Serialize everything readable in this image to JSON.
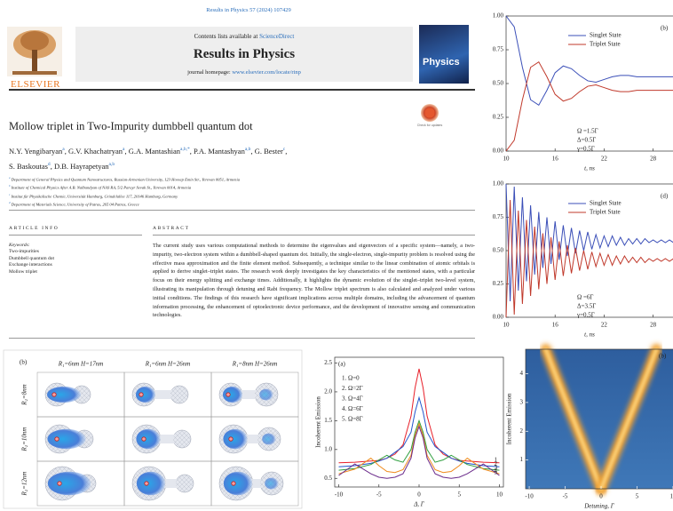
{
  "header": {
    "citation": "Results in Physics 57 (2024) 107429",
    "contents": "Contents lists available at ",
    "sciencedirect": "ScienceDirect",
    "journal": "Results in Physics",
    "homepage_label": "journal homepage: ",
    "homepage_url": "www.elsevier.com/locate/rinp",
    "publisher": "ELSEVIER",
    "cover_title": "Physics",
    "check_updates": "Check for updates"
  },
  "article": {
    "title": "Mollow triplet in Two-Impurity dumbbell quantum dot",
    "author_lines": [
      [
        {
          "name": "N.Y. Yengibaryan",
          "aff": "a",
          "sep": ","
        },
        {
          "name": "G.V. Khachatryan",
          "aff": "a",
          "sep": ","
        },
        {
          "name": "G.A. Mantashian",
          "aff": "a,b,*",
          "sep": ","
        },
        {
          "name": "P.A. Mantashyan",
          "aff": "a,b",
          "sep": ","
        },
        {
          "name": "G. Bester",
          "aff": "c",
          "sep": ","
        }
      ],
      [
        {
          "name": "S. Baskoutas",
          "aff": "d",
          "sep": ","
        },
        {
          "name": "D.B. Hayrapetyan",
          "aff": "a,b"
        }
      ]
    ],
    "affiliations": [
      {
        "mark": "a",
        "text": "Department of General Physics and Quantum Nanostructures, Russian-Armenian University, 123 Hovsep Emin Str., Yerevan 0051, Armenia"
      },
      {
        "mark": "b",
        "text": "Institute of Chemical Physics After A.B. Nalbandyan of NAS RA, 5/2 Paruyr Sevak St., Yerevan 0014, Armenia"
      },
      {
        "mark": "c",
        "text": "Institut für Physikalische Chemie, Universität Hamburg, Grindelallee 117, 20146 Hamburg, Germany"
      },
      {
        "mark": "d",
        "text": "Department of Materials Science, University of Patras, 265 04 Patras, Greece"
      }
    ],
    "info_heading": "ARTICLE INFO",
    "keywords_label": "Keywords:",
    "keywords": [
      "Two-impurities",
      "Dumbbell quantum dot",
      "Exchange interactions",
      "Mollow triplet"
    ],
    "abstract_heading": "ABSTRACT",
    "abstract": "The current study uses various computational methods to determine the eigenvalues and eigenvectors of a specific system—namely, a two-impurity, two-electron system within a dumbbell-shaped quantum dot. Initially, the single-electron, single-impurity problem is resolved using the effective mass approximation and the finite element method. Subsequently, a technique similar to the linear combination of atomic orbitals is applied to derive singlet–triplet states. The research work deeply investigates the key characteristics of the mentioned states, with a particular focus on their energy splitting and exchange times. Additionally, it highlights the dynamic evolution of the singlet–triplet two-level system, illustrating its manipulation through detuning and Rabi frequency. The Mollow triplet spectrum is also calculated and analyzed under various initial conditions. The findings of this research have significant implications across multiple domains, including the advancement of quantum information processing, the enhancement of optoelectronic device performance, and the development of innovative sensing and communication technologies."
  },
  "mesh_figure": {
    "label": "(b)",
    "column_headers": [
      "R₁=6nm   H=17nm",
      "R₁=6nm   H=26nm",
      "R₁=8nm   H=26nm"
    ],
    "row_labels": [
      "R₂=8nm",
      "R₂=10nm",
      "R₂=12nm"
    ]
  },
  "chart_data": [
    {
      "type": "line",
      "panel": "(b)",
      "x_label": "t, ns",
      "legend": "upper right",
      "x": [
        10,
        11,
        12,
        13,
        14,
        15,
        16,
        17,
        18,
        19,
        20,
        21,
        22,
        23,
        24,
        25,
        26,
        27,
        28,
        29,
        30,
        31
      ],
      "series": [
        {
          "name": "Singlet State",
          "color": "#3b4fb8",
          "values": [
            1.0,
            0.92,
            0.62,
            0.38,
            0.34,
            0.45,
            0.58,
            0.63,
            0.61,
            0.56,
            0.52,
            0.51,
            0.53,
            0.55,
            0.56,
            0.56,
            0.55,
            0.55,
            0.55,
            0.55,
            0.55,
            0.55
          ]
        },
        {
          "name": "Triplet State",
          "color": "#c0392b",
          "values": [
            0,
            0.08,
            0.38,
            0.62,
            0.66,
            0.55,
            0.42,
            0.37,
            0.39,
            0.44,
            0.48,
            0.49,
            0.47,
            0.45,
            0.44,
            0.44,
            0.45,
            0.45,
            0.45,
            0.45,
            0.45,
            0.45
          ]
        }
      ],
      "xlim": [
        10,
        31
      ],
      "xticks": [
        10,
        16,
        22,
        28
      ],
      "ylim": [
        0,
        1
      ],
      "yticks": [
        {
          "value": 0,
          "label": "0.00"
        },
        0.25,
        {
          "value": 0.5,
          "label": "0.50"
        },
        0.75,
        {
          "value": 1,
          "label": "1.00"
        }
      ],
      "annotations": [
        "Ω =1.5Γ",
        "Δ=0.5Γ",
        "γ=0.5Γ"
      ]
    },
    {
      "type": "line",
      "panel": "(d)",
      "x_label": "t, ns",
      "legend": "upper right",
      "x": [
        10,
        10.5,
        11,
        11.5,
        12,
        12.5,
        13,
        13.5,
        14,
        14.5,
        15,
        15.5,
        16,
        16.5,
        17,
        17.5,
        18,
        18.5,
        19,
        19.5,
        20,
        20.5,
        21,
        21.5,
        22,
        22.5,
        23,
        23.5,
        24,
        24.5,
        25,
        25.5,
        26,
        26.5,
        27,
        27.5,
        28,
        28.5,
        29,
        29.5,
        30,
        30.5,
        31
      ],
      "series": [
        {
          "name": "Singlet State",
          "color": "#3b4fb8",
          "values": [
            1.0,
            0.12,
            0.98,
            0.2,
            0.9,
            0.27,
            0.84,
            0.32,
            0.79,
            0.37,
            0.75,
            0.4,
            0.72,
            0.43,
            0.69,
            0.46,
            0.67,
            0.48,
            0.65,
            0.5,
            0.64,
            0.51,
            0.62,
            0.52,
            0.61,
            0.53,
            0.61,
            0.54,
            0.6,
            0.54,
            0.59,
            0.55,
            0.59,
            0.55,
            0.59,
            0.56,
            0.58,
            0.56,
            0.58,
            0.56,
            0.58,
            0.56,
            0.58
          ]
        },
        {
          "name": "Triplet State",
          "color": "#c0392b",
          "values": [
            0,
            0.88,
            0.02,
            0.8,
            0.1,
            0.73,
            0.16,
            0.68,
            0.21,
            0.63,
            0.25,
            0.6,
            0.28,
            0.57,
            0.31,
            0.54,
            0.33,
            0.52,
            0.35,
            0.5,
            0.36,
            0.49,
            0.38,
            0.48,
            0.39,
            0.47,
            0.39,
            0.46,
            0.4,
            0.46,
            0.41,
            0.45,
            0.41,
            0.45,
            0.41,
            0.44,
            0.42,
            0.44,
            0.42,
            0.44,
            0.42,
            0.44,
            0.42
          ]
        }
      ],
      "xlim": [
        10,
        31
      ],
      "xticks": [
        10,
        16,
        22,
        28
      ],
      "ylim": [
        0,
        1
      ],
      "yticks": [
        {
          "value": 0,
          "label": "0.00"
        },
        0.25,
        {
          "value": 0.5,
          "label": "0.50"
        },
        0.75,
        {
          "value": 1,
          "label": "1.00"
        }
      ],
      "annotations": [
        "Ω =6Γ",
        "Δ=3.5Γ",
        "γ=0.5Γ"
      ]
    },
    {
      "type": "line",
      "panel": "(a)",
      "x_label": "Δ, Γ",
      "y_label": "Incoherent Emission",
      "legend": "upper left",
      "x": [
        -10,
        -8,
        -6,
        -5,
        -4,
        -3,
        -2,
        -1,
        -0.5,
        0,
        0.5,
        1,
        2,
        3,
        4,
        5,
        6,
        8,
        10
      ],
      "series": [
        {
          "name": "1. Ω=0",
          "color": "#e8202a",
          "values": [
            0.77,
            0.78,
            0.8,
            0.81,
            0.85,
            0.92,
            1.08,
            1.58,
            2.07,
            2.4,
            2.07,
            1.58,
            1.08,
            0.92,
            0.85,
            0.81,
            0.8,
            0.78,
            0.77
          ]
        },
        {
          "name": "2. Ω=2Γ",
          "color": "#2255cc",
          "values": [
            0.7,
            0.72,
            0.76,
            0.8,
            0.85,
            0.95,
            1.05,
            1.3,
            1.65,
            1.9,
            1.65,
            1.3,
            1.05,
            0.95,
            0.85,
            0.8,
            0.76,
            0.72,
            0.7
          ]
        },
        {
          "name": "3. Ω=4Γ",
          "color": "#2e9e3e",
          "values": [
            0.64,
            0.67,
            0.74,
            0.82,
            0.9,
            0.82,
            0.78,
            1.0,
            1.3,
            1.5,
            1.3,
            1.0,
            0.78,
            0.82,
            0.9,
            0.82,
            0.74,
            0.67,
            0.64
          ]
        },
        {
          "name": "4. Ω=6Γ",
          "color": "#f08a1c",
          "values": [
            0.58,
            0.66,
            0.85,
            0.72,
            0.62,
            0.6,
            0.65,
            0.9,
            1.25,
            1.45,
            1.25,
            0.9,
            0.65,
            0.6,
            0.62,
            0.72,
            0.85,
            0.66,
            0.58
          ]
        },
        {
          "name": "5. Ω=8Γ",
          "color": "#6a2a8a",
          "values": [
            0.55,
            0.75,
            0.58,
            0.52,
            0.5,
            0.52,
            0.58,
            0.85,
            1.2,
            1.4,
            1.2,
            0.85,
            0.58,
            0.52,
            0.5,
            0.52,
            0.58,
            0.75,
            0.55
          ]
        }
      ],
      "end_labels": [
        "1",
        "2",
        "3",
        "4",
        "5"
      ],
      "xlim": [
        -10.5,
        10.5
      ],
      "xticks": [
        -10,
        -5,
        0,
        5,
        10
      ],
      "ylim": [
        0.35,
        2.6
      ],
      "yticks": [
        0.5,
        {
          "value": 1,
          "label": "1.0"
        },
        1.5,
        {
          "value": 2,
          "label": "2.0"
        },
        2.5
      ]
    },
    {
      "type": "density",
      "panel": "(b)",
      "x_label": "Detuning, Γ",
      "y_label": "Incoherent Emission",
      "ridges": [
        {
          "x": [
            0,
            -1.6,
            -3.2,
            -4.8,
            -6.4,
            -7.7
          ],
          "y": [
            0,
            1,
            2,
            3,
            4,
            4.85
          ]
        },
        {
          "x": [
            0,
            1.6,
            3.2,
            4.8,
            6.4,
            7.7
          ],
          "y": [
            0,
            1,
            2,
            3,
            4,
            4.85
          ]
        },
        {
          "x": [
            0,
            0,
            0
          ],
          "y": [
            0,
            1.2,
            2.5
          ]
        }
      ],
      "xlim": [
        -10.5,
        10.5
      ],
      "xticks": [
        -10,
        -5,
        0,
        5,
        10
      ],
      "ylim": [
        0,
        4.85
      ],
      "yticks": [
        1,
        2,
        3,
        4
      ]
    }
  ]
}
